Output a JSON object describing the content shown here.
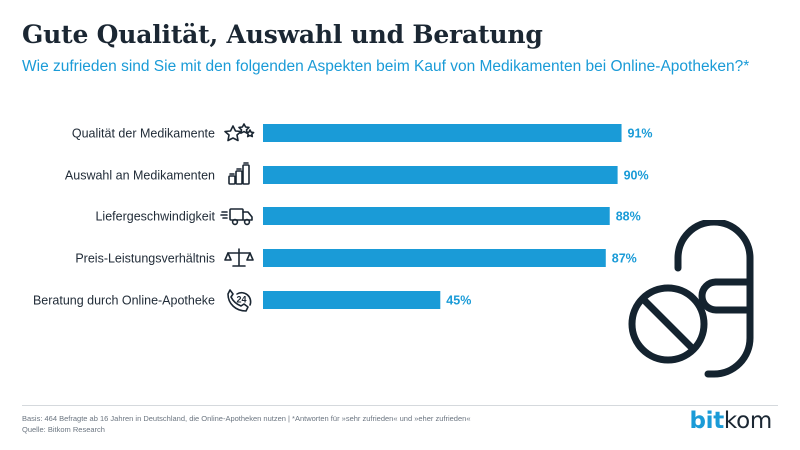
{
  "header": {
    "title": "Gute Qualität, Auswahl und Beratung",
    "subtitle": "Wie zufrieden sind Sie mit den folgenden Aspekten beim Kauf von Medikamenten bei Online-Apotheken?*"
  },
  "chart_data": {
    "type": "bar",
    "orientation": "horizontal",
    "categories": [
      "Qualität der Medikamente",
      "Auswahl an Medikamenten",
      "Liefergeschwindigkeit",
      "Preis-Leistungsverhältnis",
      "Beratung durch Online-Apotheke"
    ],
    "values": [
      91,
      90,
      88,
      87,
      45
    ],
    "value_labels": [
      "91%",
      "90%",
      "88%",
      "87%",
      "45%"
    ],
    "icons": [
      "stars-icon",
      "pill-bottles-icon",
      "delivery-truck-icon",
      "scales-icon",
      "phone-24h-icon"
    ],
    "unit": "%",
    "xlim": [
      0,
      100
    ],
    "bar_color": "#1a9bd7",
    "grid": false,
    "legend": "none"
  },
  "footer": {
    "basis": "Basis: 464 Befragte ab 16 Jahren in Deutschland, die Online-Apotheken nutzen | *Antworten für »sehr zufrieden« und »eher zufrieden«",
    "source": "Quelle: Bitkom Research"
  },
  "logo": {
    "part1": "bit",
    "part2": "kom"
  },
  "colors": {
    "accent": "#1a9bd7",
    "text": "#1b2733",
    "background": "#ffffff"
  }
}
